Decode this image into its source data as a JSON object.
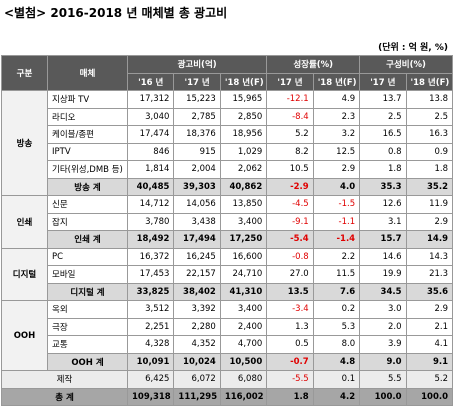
{
  "header": {
    "title": "<별첨> 2016-2018 년 매체별 총 광고비",
    "unit": "(단위 : 억 원, %)"
  },
  "table": {
    "head_top": [
      "구분",
      "매체",
      "광고비(억)",
      "성장률(%)",
      "구성비(%)"
    ],
    "head_sub": [
      "'16 년",
      "'17 년",
      "'18 년(F)",
      "'17 년",
      "'18 년(F)",
      "'17 년",
      "'18 년(F)"
    ],
    "groups": [
      {
        "name": "방송",
        "rows": [
          [
            "지상파 TV",
            "17,312",
            "15,223",
            "15,965",
            "-12.1",
            "4.9",
            "13.7",
            "13.8"
          ],
          [
            "라디오",
            "3,040",
            "2,785",
            "2,850",
            "-8.4",
            "2.3",
            "2.5",
            "2.5"
          ],
          [
            "케이블/종편",
            "17,474",
            "18,376",
            "18,956",
            "5.2",
            "3.2",
            "16.5",
            "16.3"
          ],
          [
            "IPTV",
            "846",
            "915",
            "1,029",
            "8.2",
            "12.5",
            "0.8",
            "0.9"
          ],
          [
            "기타(위성,DMB 등)",
            "1,814",
            "2,004",
            "2,062",
            "10.5",
            "2.9",
            "1.8",
            "1.8"
          ]
        ],
        "subtotal": [
          "방송 계",
          "40,485",
          "39,303",
          "40,862",
          "-2.9",
          "4.0",
          "35.3",
          "35.2"
        ]
      },
      {
        "name": "인쇄",
        "rows": [
          [
            "신문",
            "14,712",
            "14,056",
            "13,850",
            "-4.5",
            "-1.5",
            "12.6",
            "11.9"
          ],
          [
            "잡지",
            "3,780",
            "3,438",
            "3,400",
            "-9.1",
            "-1.1",
            "3.1",
            "2.9"
          ]
        ],
        "subtotal": [
          "인쇄 계",
          "18,492",
          "17,494",
          "17,250",
          "-5.4",
          "-1.4",
          "15.7",
          "14.9"
        ]
      },
      {
        "name": "디지털",
        "rows": [
          [
            "PC",
            "16,372",
            "16,245",
            "16,600",
            "-0.8",
            "2.2",
            "14.6",
            "14.3"
          ],
          [
            "모바일",
            "17,453",
            "22,157",
            "24,710",
            "27.0",
            "11.5",
            "19.9",
            "21.3"
          ]
        ],
        "subtotal": [
          "디지털 계",
          "33,825",
          "38,402",
          "41,310",
          "13.5",
          "7.6",
          "34.5",
          "35.6"
        ]
      },
      {
        "name": "OOH",
        "rows": [
          [
            "옥외",
            "3,512",
            "3,392",
            "3,400",
            "-3.4",
            "0.2",
            "3.0",
            "2.9"
          ],
          [
            "극장",
            "2,251",
            "2,280",
            "2,400",
            "1.3",
            "5.3",
            "2.0",
            "2.1"
          ],
          [
            "교통",
            "4,328",
            "4,352",
            "4,700",
            "0.5",
            "8.0",
            "3.9",
            "4.1"
          ]
        ],
        "subtotal": [
          "OOH 계",
          "10,091",
          "10,024",
          "10,500",
          "-0.7",
          "4.8",
          "9.0",
          "9.1"
        ]
      }
    ],
    "production": [
      "제작",
      "6,425",
      "6,072",
      "6,080",
      "-5.5",
      "0.1",
      "5.5",
      "5.2"
    ],
    "total": [
      "총 계",
      "109,318",
      "111,295",
      "116,002",
      "1.8",
      "4.2",
      "100.0",
      "100.0"
    ]
  }
}
